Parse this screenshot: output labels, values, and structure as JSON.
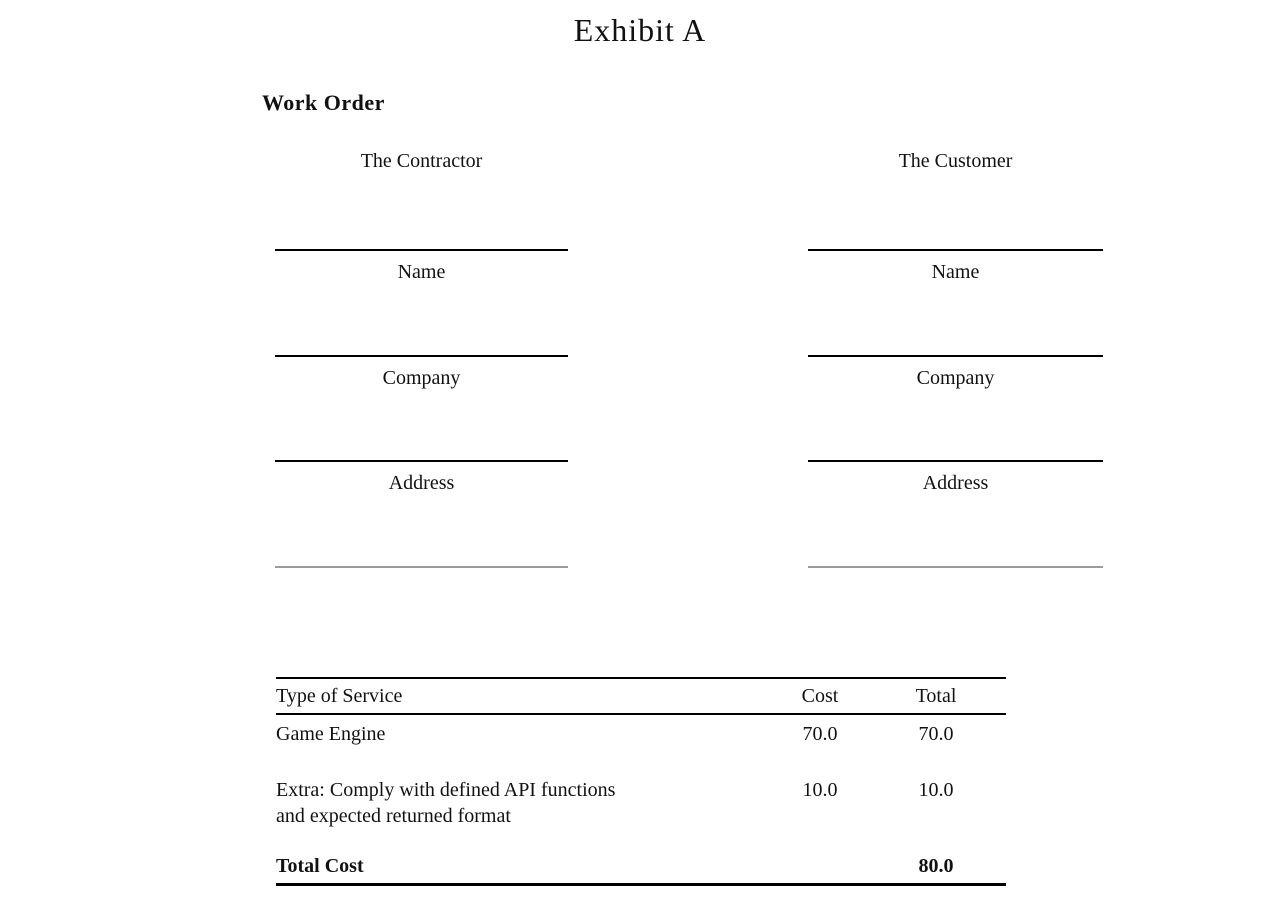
{
  "document": {
    "title": "Exhibit A",
    "heading": "Work Order"
  },
  "parties": [
    {
      "heading": "The Contractor",
      "fields": [
        {
          "label": "Name"
        },
        {
          "label": "Company"
        },
        {
          "label": "Address"
        }
      ]
    },
    {
      "heading": "The Customer",
      "fields": [
        {
          "label": "Name"
        },
        {
          "label": "Company"
        },
        {
          "label": "Address"
        }
      ]
    }
  ],
  "service_table": {
    "headers": {
      "service": "Type of Service",
      "cost": "Cost",
      "total": "Total"
    },
    "rows": [
      {
        "service_lines": [
          "Game Engine"
        ],
        "cost": "70.0",
        "total": "70.0"
      },
      {
        "service_lines": [
          "Extra: Comply with defined API functions",
          "and expected returned format"
        ],
        "cost": "10.0",
        "total": "10.0"
      }
    ],
    "total": {
      "label": "Total Cost",
      "value": "80.0"
    }
  }
}
